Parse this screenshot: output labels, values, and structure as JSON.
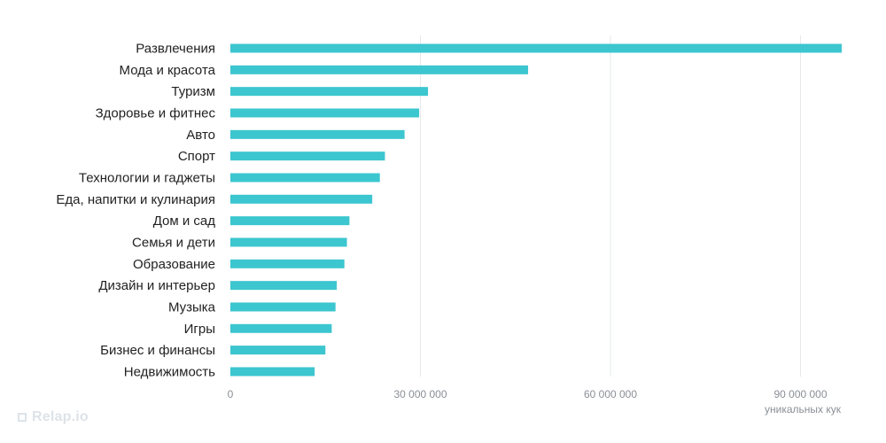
{
  "chart_data": {
    "type": "bar",
    "orientation": "horizontal",
    "categories": [
      "Развлечения",
      "Мода и красота",
      "Туризм",
      "Здоровье и фитнес",
      "Авто",
      "Спорт",
      "Технологии и гаджеты",
      "Еда, напитки и кулинария",
      "Дом и сад",
      "Семья и дети",
      "Образование",
      "Дизайн и интерьер",
      "Музыка",
      "Игры",
      "Бизнес и финансы",
      "Недвижимость"
    ],
    "values": [
      96500000,
      47000000,
      31200000,
      29800000,
      27500000,
      24400000,
      23600000,
      22400000,
      18800000,
      18400000,
      18000000,
      16800000,
      16600000,
      16000000,
      15000000,
      13300000
    ],
    "xlim": [
      0,
      100000000
    ],
    "xticks": [
      0,
      30000000,
      60000000,
      90000000
    ],
    "xtick_labels": [
      "0",
      "30 000 000",
      "60 000 000",
      "90 000 000"
    ],
    "xlabel": "уникальных кук",
    "grid": true,
    "bar_color": "#3cc6cf"
  },
  "watermark": {
    "text": "Relap.io"
  }
}
